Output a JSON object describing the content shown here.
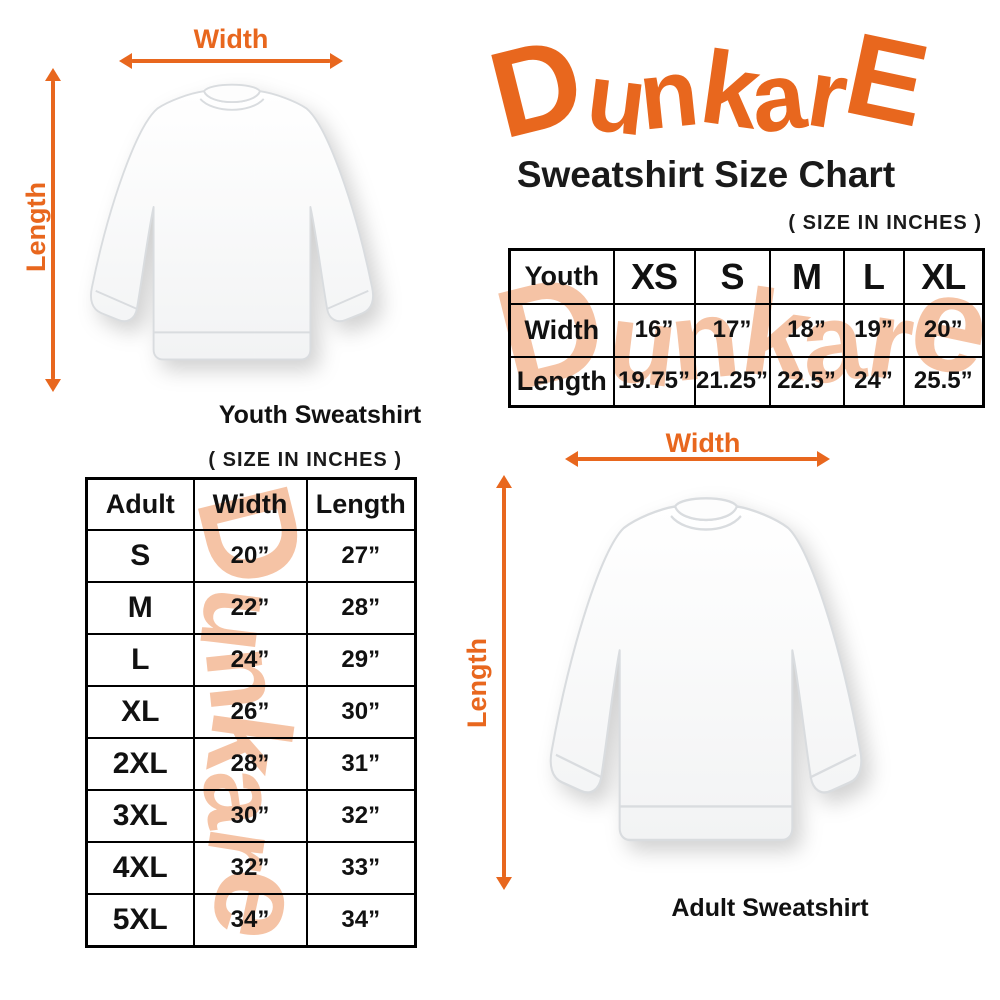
{
  "brand": {
    "logo_text": "DunkarE",
    "orange": "#E8671E",
    "watermark_text": "Dunkare",
    "watermark_color": "#F5C3A5"
  },
  "header": {
    "title": "Sweatshirt Size Chart",
    "size_note": "( SIZE IN INCHES )"
  },
  "youth_diagram": {
    "width_label": "Width",
    "length_label": "Length",
    "caption": "Youth Sweatshirt"
  },
  "adult_diagram": {
    "width_label": "Width",
    "length_label": "Length",
    "caption": "Adult Sweatshirt"
  },
  "youth_table": {
    "header": [
      "Youth",
      "XS",
      "S",
      "M",
      "L",
      "XL"
    ],
    "rows": [
      {
        "label": "Width",
        "values": [
          "16”",
          "17”",
          "18”",
          "19”",
          "20”"
        ]
      },
      {
        "label": "Length",
        "values": [
          "19.75”",
          "21.25”",
          "22.5”",
          "24”",
          "25.5”"
        ]
      }
    ]
  },
  "adult_table": {
    "header": [
      "Adult",
      "Width",
      "Length"
    ],
    "rows": [
      [
        "S",
        "20”",
        "27”"
      ],
      [
        "M",
        "22”",
        "28”"
      ],
      [
        "L",
        "24”",
        "29”"
      ],
      [
        "XL",
        "26”",
        "30”"
      ],
      [
        "2XL",
        "28”",
        "31”"
      ],
      [
        "3XL",
        "30”",
        "32”"
      ],
      [
        "4XL",
        "32”",
        "33”"
      ],
      [
        "5XL",
        "34”",
        "34”"
      ]
    ]
  }
}
